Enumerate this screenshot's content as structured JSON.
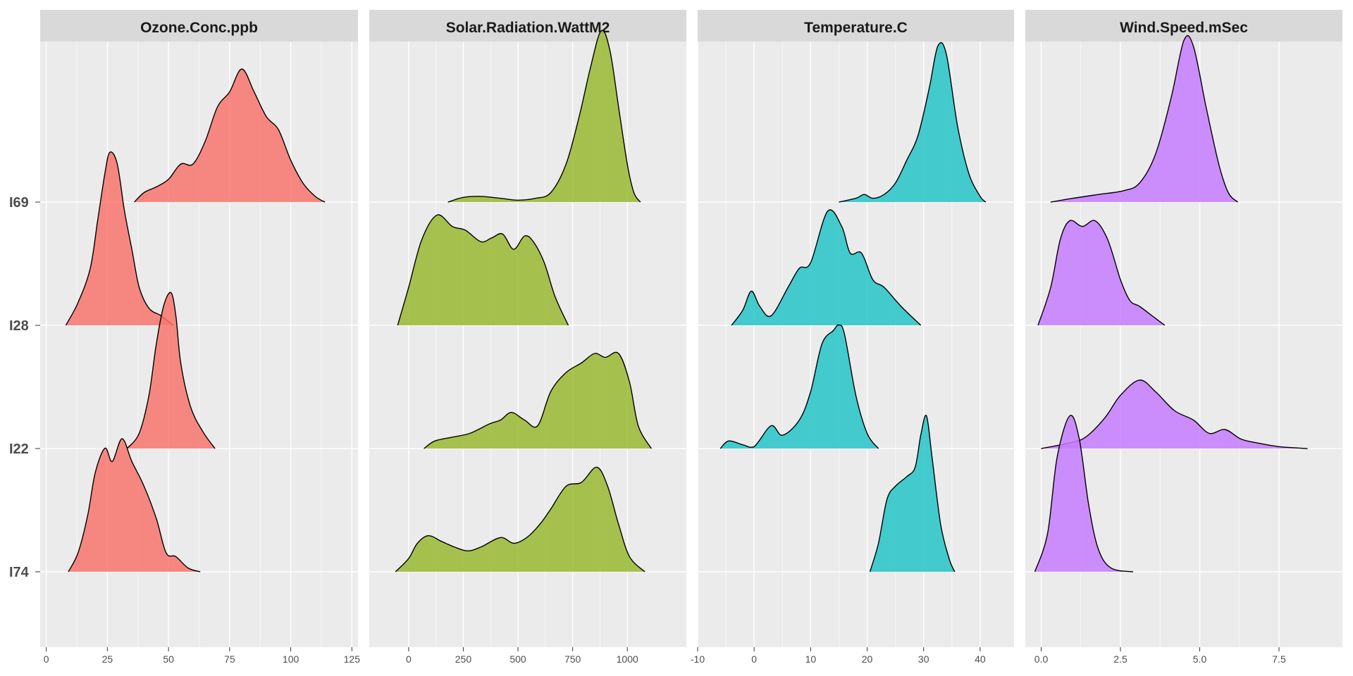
{
  "chart_data": {
    "type": "ridgeline",
    "rows": [
      "I69",
      "I28",
      "I22",
      "I74"
    ],
    "facets": [
      {
        "title": "Ozone.Conc.ppb",
        "color": "#F8766D",
        "xlim": [
          -2.5,
          127.5
        ],
        "ticks": [
          0,
          25,
          50,
          75,
          100,
          125
        ],
        "tick_labels": [
          "0",
          "25",
          "50",
          "75",
          "100",
          "125"
        ],
        "series": {
          "I69": [
            [
              36,
              0
            ],
            [
              40,
              0.05
            ],
            [
              45,
              0.08
            ],
            [
              50,
              0.12
            ],
            [
              55,
              0.2
            ],
            [
              60,
              0.2
            ],
            [
              65,
              0.32
            ],
            [
              70,
              0.5
            ],
            [
              75,
              0.58
            ],
            [
              80,
              0.7
            ],
            [
              85,
              0.58
            ],
            [
              90,
              0.45
            ],
            [
              95,
              0.38
            ],
            [
              100,
              0.22
            ],
            [
              105,
              0.1
            ],
            [
              110,
              0.03
            ],
            [
              114,
              0
            ]
          ],
          "I28": [
            [
              8,
              0
            ],
            [
              13,
              0.12
            ],
            [
              18,
              0.3
            ],
            [
              21,
              0.55
            ],
            [
              24,
              0.8
            ],
            [
              26,
              0.91
            ],
            [
              29,
              0.85
            ],
            [
              32,
              0.6
            ],
            [
              35,
              0.4
            ],
            [
              38,
              0.2
            ],
            [
              42,
              0.09
            ],
            [
              47,
              0.05
            ],
            [
              52,
              0
            ]
          ],
          "I22": [
            [
              33,
              0
            ],
            [
              38,
              0.08
            ],
            [
              42,
              0.28
            ],
            [
              45,
              0.55
            ],
            [
              48,
              0.75
            ],
            [
              51,
              0.82
            ],
            [
              53,
              0.7
            ],
            [
              55,
              0.45
            ],
            [
              59,
              0.22
            ],
            [
              64,
              0.09
            ],
            [
              69,
              0
            ]
          ],
          "I74": [
            [
              9,
              0
            ],
            [
              13,
              0.1
            ],
            [
              17,
              0.3
            ],
            [
              20,
              0.52
            ],
            [
              24,
              0.65
            ],
            [
              27,
              0.58
            ],
            [
              31,
              0.7
            ],
            [
              35,
              0.58
            ],
            [
              40,
              0.45
            ],
            [
              45,
              0.28
            ],
            [
              49,
              0.1
            ],
            [
              53,
              0.08
            ],
            [
              58,
              0.02
            ],
            [
              63,
              0
            ]
          ]
        }
      },
      {
        "title": "Solar.Radiation.WattM2",
        "color": "#9AB833",
        "xlim": [
          -180,
          1270
        ],
        "ticks": [
          0,
          250,
          500,
          750,
          1000
        ],
        "tick_labels": [
          "0",
          "250",
          "500",
          "750",
          "1000"
        ],
        "series": {
          "I69": [
            [
              180,
              0
            ],
            [
              250,
              0.025
            ],
            [
              330,
              0.03
            ],
            [
              420,
              0.02
            ],
            [
              500,
              0.01
            ],
            [
              580,
              0.02
            ],
            [
              650,
              0.05
            ],
            [
              720,
              0.2
            ],
            [
              780,
              0.45
            ],
            [
              830,
              0.7
            ],
            [
              880,
              0.9
            ],
            [
              920,
              0.8
            ],
            [
              960,
              0.5
            ],
            [
              1000,
              0.2
            ],
            [
              1030,
              0.05
            ],
            [
              1060,
              0
            ]
          ],
          "I28": [
            [
              -50,
              0
            ],
            [
              0,
              0.2
            ],
            [
              60,
              0.45
            ],
            [
              130,
              0.58
            ],
            [
              200,
              0.52
            ],
            [
              260,
              0.5
            ],
            [
              330,
              0.44
            ],
            [
              380,
              0.46
            ],
            [
              430,
              0.48
            ],
            [
              480,
              0.4
            ],
            [
              530,
              0.47
            ],
            [
              570,
              0.44
            ],
            [
              620,
              0.33
            ],
            [
              670,
              0.15
            ],
            [
              730,
              0
            ]
          ],
          "I22": [
            [
              70,
              0
            ],
            [
              120,
              0.04
            ],
            [
              200,
              0.06
            ],
            [
              280,
              0.08
            ],
            [
              370,
              0.13
            ],
            [
              420,
              0.15
            ],
            [
              470,
              0.19
            ],
            [
              530,
              0.15
            ],
            [
              590,
              0.12
            ],
            [
              650,
              0.3
            ],
            [
              720,
              0.4
            ],
            [
              790,
              0.45
            ],
            [
              850,
              0.5
            ],
            [
              900,
              0.48
            ],
            [
              960,
              0.5
            ],
            [
              1010,
              0.35
            ],
            [
              1050,
              0.12
            ],
            [
              1110,
              0
            ]
          ],
          "I74": [
            [
              -60,
              0
            ],
            [
              0,
              0.07
            ],
            [
              40,
              0.15
            ],
            [
              90,
              0.19
            ],
            [
              150,
              0.16
            ],
            [
              210,
              0.13
            ],
            [
              270,
              0.11
            ],
            [
              330,
              0.13
            ],
            [
              420,
              0.18
            ],
            [
              480,
              0.15
            ],
            [
              540,
              0.18
            ],
            [
              600,
              0.25
            ],
            [
              650,
              0.33
            ],
            [
              720,
              0.45
            ],
            [
              790,
              0.47
            ],
            [
              860,
              0.55
            ],
            [
              910,
              0.45
            ],
            [
              960,
              0.25
            ],
            [
              1010,
              0.08
            ],
            [
              1080,
              0
            ]
          ]
        }
      },
      {
        "title": "Temperature.C",
        "color": "#24C4C8",
        "xlim": [
          -10,
          46
        ],
        "ticks": [
          -10,
          0,
          10,
          20,
          30,
          40
        ],
        "tick_labels": [
          "-10",
          "0",
          "10",
          "20",
          "30",
          "40"
        ],
        "series": {
          "I69": [
            [
              15,
              0
            ],
            [
              18,
              0.02
            ],
            [
              19.5,
              0.04
            ],
            [
              21,
              0.02
            ],
            [
              23,
              0.04
            ],
            [
              25,
              0.1
            ],
            [
              27,
              0.22
            ],
            [
              29,
              0.35
            ],
            [
              31,
              0.6
            ],
            [
              32.5,
              0.82
            ],
            [
              34,
              0.78
            ],
            [
              36,
              0.4
            ],
            [
              38,
              0.15
            ],
            [
              40,
              0.03
            ],
            [
              41,
              0
            ]
          ],
          "I28": [
            [
              -4,
              0
            ],
            [
              -2,
              0.08
            ],
            [
              -0.5,
              0.18
            ],
            [
              1,
              0.1
            ],
            [
              3,
              0.05
            ],
            [
              6,
              0.2
            ],
            [
              8,
              0.3
            ],
            [
              10,
              0.33
            ],
            [
              13,
              0.6
            ],
            [
              15.5,
              0.52
            ],
            [
              17,
              0.38
            ],
            [
              19,
              0.38
            ],
            [
              21,
              0.24
            ],
            [
              23,
              0.2
            ],
            [
              26,
              0.1
            ],
            [
              29.5,
              0
            ]
          ],
          "I22": [
            [
              -6,
              0
            ],
            [
              -4.5,
              0.04
            ],
            [
              -2,
              0.02
            ],
            [
              0,
              0.01
            ],
            [
              3,
              0.12
            ],
            [
              5,
              0.07
            ],
            [
              8,
              0.15
            ],
            [
              10,
              0.3
            ],
            [
              12,
              0.55
            ],
            [
              14,
              0.62
            ],
            [
              15,
              0.65
            ],
            [
              16,
              0.6
            ],
            [
              18,
              0.28
            ],
            [
              20,
              0.08
            ],
            [
              22,
              0
            ]
          ],
          "I74": [
            [
              20.5,
              0
            ],
            [
              22,
              0.15
            ],
            [
              23.5,
              0.38
            ],
            [
              25,
              0.45
            ],
            [
              27,
              0.5
            ],
            [
              28.5,
              0.55
            ],
            [
              29.5,
              0.72
            ],
            [
              30.5,
              0.82
            ],
            [
              31.5,
              0.6
            ],
            [
              33,
              0.25
            ],
            [
              34.5,
              0.07
            ],
            [
              35.5,
              0
            ]
          ]
        }
      },
      {
        "title": "Wind.Speed.mSec",
        "color": "#C77CFF",
        "xlim": [
          -0.5,
          9.5
        ],
        "ticks": [
          0,
          2.5,
          5,
          7.5
        ],
        "tick_labels": [
          "0.0",
          "2.5",
          "5.0",
          "7.5"
        ],
        "series": {
          "I69": [
            [
              0.3,
              0
            ],
            [
              1.0,
              0.02
            ],
            [
              1.8,
              0.04
            ],
            [
              2.6,
              0.06
            ],
            [
              3.1,
              0.1
            ],
            [
              3.6,
              0.25
            ],
            [
              4.1,
              0.55
            ],
            [
              4.5,
              0.85
            ],
            [
              4.8,
              0.82
            ],
            [
              5.2,
              0.5
            ],
            [
              5.6,
              0.2
            ],
            [
              5.9,
              0.05
            ],
            [
              6.2,
              0
            ]
          ],
          "I28": [
            [
              -0.1,
              0
            ],
            [
              0.3,
              0.2
            ],
            [
              0.6,
              0.45
            ],
            [
              0.9,
              0.55
            ],
            [
              1.3,
              0.52
            ],
            [
              1.7,
              0.55
            ],
            [
              2.1,
              0.45
            ],
            [
              2.5,
              0.24
            ],
            [
              2.8,
              0.13
            ],
            [
              3.1,
              0.1
            ],
            [
              3.5,
              0.05
            ],
            [
              3.9,
              0
            ]
          ],
          "I22": [
            [
              0,
              0
            ],
            [
              0.9,
              0.03
            ],
            [
              1.4,
              0.06
            ],
            [
              2.0,
              0.16
            ],
            [
              2.5,
              0.28
            ],
            [
              3.1,
              0.36
            ],
            [
              3.6,
              0.3
            ],
            [
              4.2,
              0.2
            ],
            [
              4.8,
              0.15
            ],
            [
              5.3,
              0.08
            ],
            [
              5.8,
              0.1
            ],
            [
              6.3,
              0.05
            ],
            [
              6.8,
              0.03
            ],
            [
              7.5,
              0.01
            ],
            [
              8.4,
              0
            ]
          ],
          "I74": [
            [
              -0.2,
              0
            ],
            [
              0.2,
              0.2
            ],
            [
              0.5,
              0.6
            ],
            [
              0.9,
              0.82
            ],
            [
              1.2,
              0.7
            ],
            [
              1.5,
              0.35
            ],
            [
              1.8,
              0.12
            ],
            [
              2.2,
              0.02
            ],
            [
              2.9,
              0
            ]
          ]
        }
      }
    ]
  }
}
